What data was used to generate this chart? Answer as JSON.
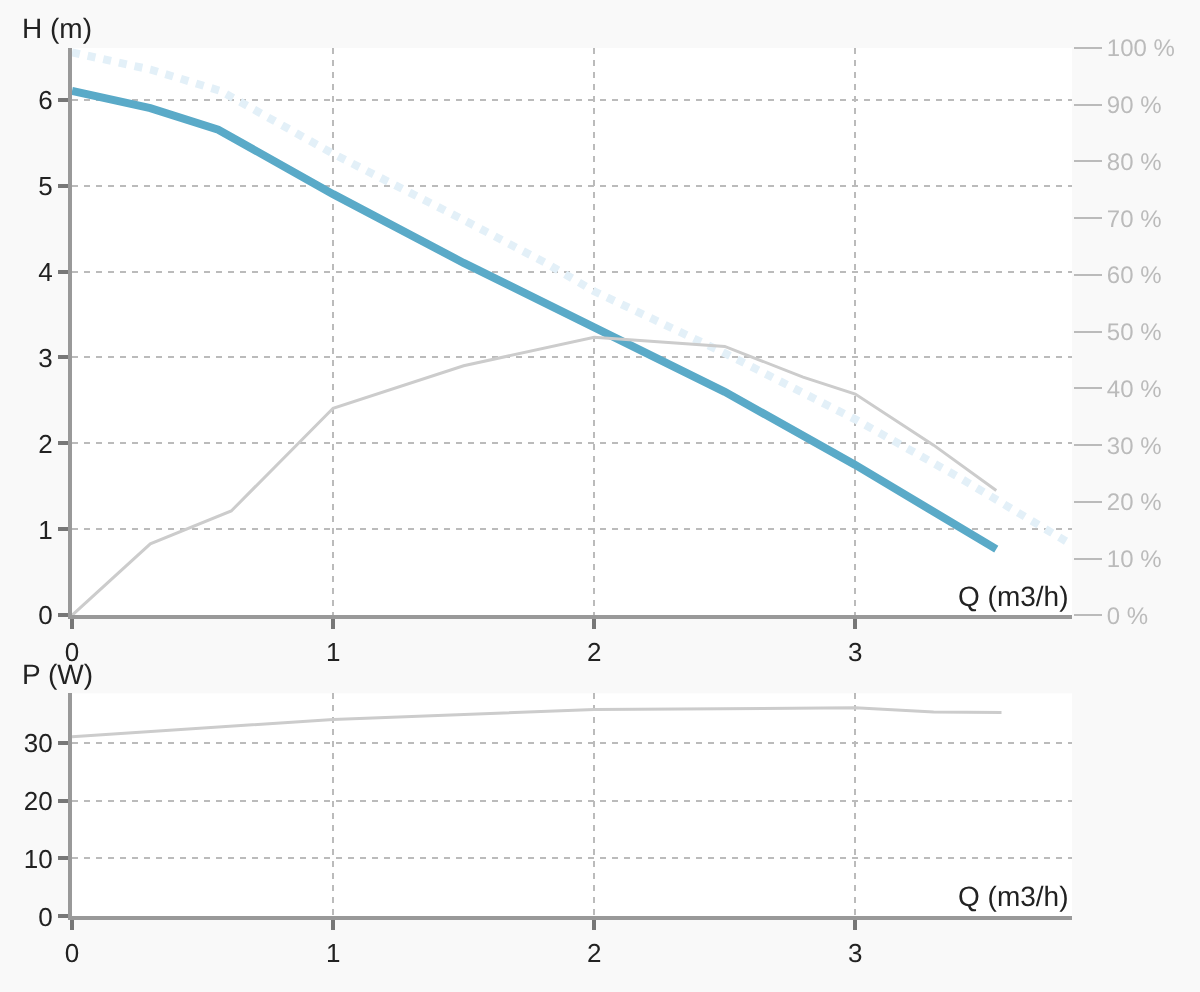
{
  "chart_data": [
    {
      "type": "line",
      "xlabel": "Q (m3/h)",
      "ylabel": "H (m)",
      "xlim": [
        0,
        3.83
      ],
      "xticks": [
        0,
        1,
        2,
        3
      ],
      "ylim": [
        0,
        6.6
      ],
      "yticks": [
        0,
        1,
        2,
        3,
        4,
        5,
        6
      ],
      "y2lim": [
        0,
        100
      ],
      "y2ticks": [
        {
          "value": 0,
          "label": "0 %"
        },
        {
          "value": 10,
          "label": "10 %"
        },
        {
          "value": 20,
          "label": "20 %"
        },
        {
          "value": 30,
          "label": "30 %"
        },
        {
          "value": 40,
          "label": "40 %"
        },
        {
          "value": 50,
          "label": "50 %"
        },
        {
          "value": 60,
          "label": "60 %"
        },
        {
          "value": 70,
          "label": "70 %"
        },
        {
          "value": 80,
          "label": "80 %"
        },
        {
          "value": 90,
          "label": "90 %"
        },
        {
          "value": 100,
          "label": "100 %"
        }
      ],
      "grid": true,
      "marker": "none",
      "series": [
        {
          "color": "#e3f0f8",
          "line_style": "dotted",
          "x": [
            0,
            0.3,
            0.57,
            1,
            1.5,
            1.82,
            2,
            2.5,
            3,
            3.4,
            3.83
          ],
          "values": [
            6.55,
            6.35,
            6.1,
            5.37,
            4.6,
            4.09,
            3.77,
            3.05,
            2.28,
            1.6,
            0.82
          ]
        },
        {
          "color": "#cccccc",
          "axis": "y2",
          "x": [
            0,
            0.3,
            0.61,
            1,
            1.5,
            2,
            2.5,
            2.8,
            3,
            3.3,
            3.54
          ],
          "values": [
            0,
            12.6,
            18.4,
            36.5,
            44,
            49,
            47.4,
            42,
            39,
            30,
            22
          ]
        },
        {
          "color": "#5aaac8",
          "line_style": "solid",
          "x": [
            0,
            0.3,
            0.56,
            1,
            1.5,
            2,
            2.5,
            3,
            3.54
          ],
          "values": [
            6.1,
            5.9,
            5.65,
            4.9,
            4.1,
            3.35,
            2.6,
            1.75,
            0.77
          ]
        }
      ]
    },
    {
      "type": "line",
      "xlabel": "Q (m3/h)",
      "ylabel": "P (W)",
      "xlim": [
        0,
        3.83
      ],
      "xticks": [
        0,
        1,
        2,
        3
      ],
      "ylim": [
        0,
        38.5
      ],
      "yticks": [
        0,
        10,
        20,
        30
      ],
      "grid": true,
      "marker": "none",
      "series": [
        {
          "color": "#cccccc",
          "x": [
            0,
            1,
            2,
            3,
            3.3,
            3.56
          ],
          "values": [
            31,
            34,
            35.7,
            36,
            35.3,
            35.2
          ]
        }
      ]
    }
  ]
}
